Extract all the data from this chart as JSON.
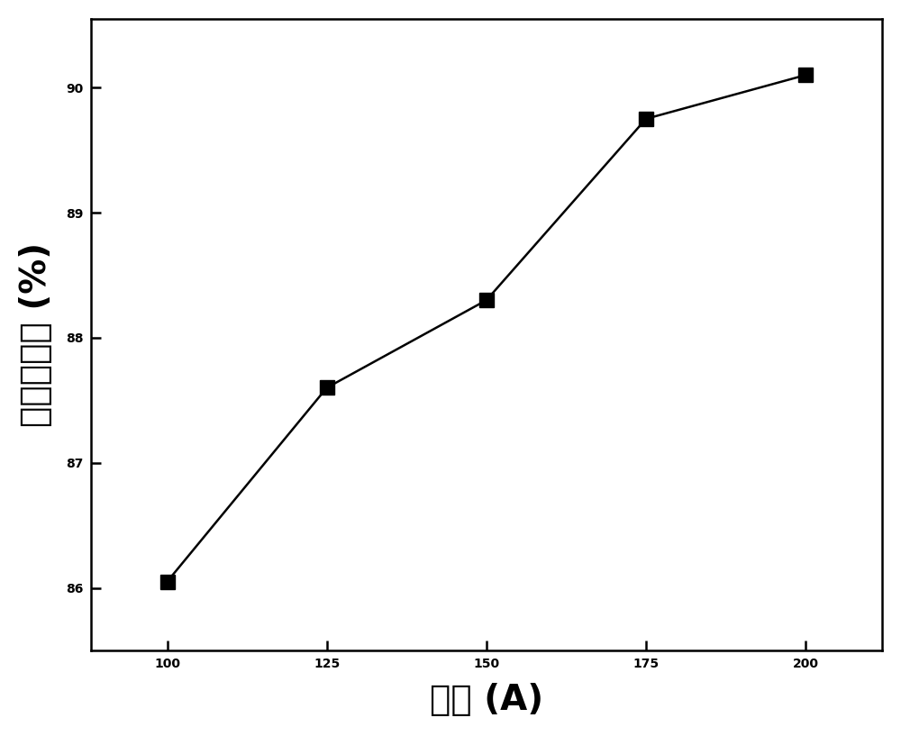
{
  "x": [
    100,
    125,
    150,
    175,
    200
  ],
  "y": [
    86.05,
    87.6,
    88.3,
    89.75,
    90.1
  ],
  "xlabel": "电流 (A)",
  "ylabel": "杂质去除率 (%)",
  "xlim": [
    88,
    212
  ],
  "ylim": [
    85.5,
    90.55
  ],
  "xticks": [
    100,
    125,
    150,
    175,
    200
  ],
  "yticks": [
    86,
    87,
    88,
    89,
    90
  ],
  "line_color": "#000000",
  "marker_color": "#000000",
  "marker": "s",
  "marker_size": 11,
  "line_width": 1.8,
  "background_color": "#ffffff",
  "tick_fontsize": 26,
  "label_fontsize": 28
}
